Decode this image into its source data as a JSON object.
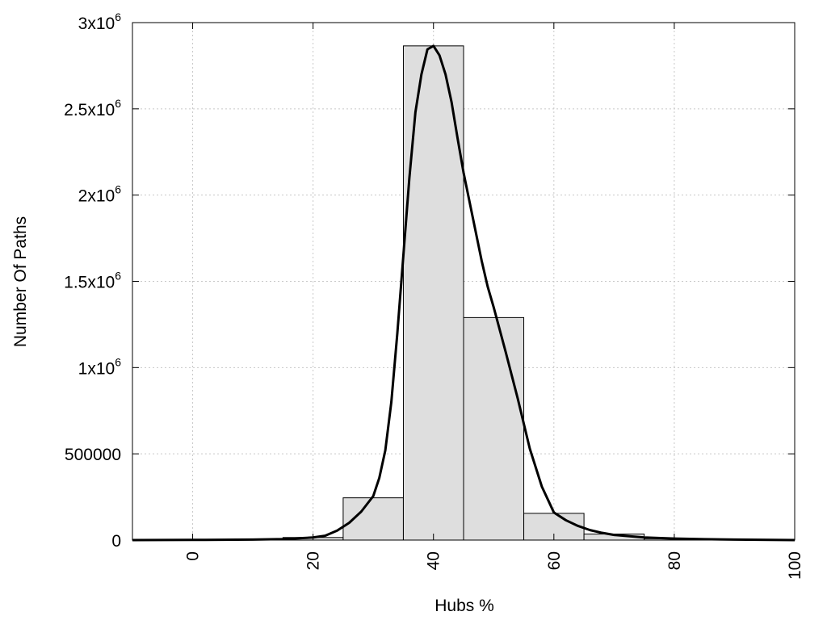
{
  "chart_data": {
    "type": "bar",
    "xlabel": "Hubs %",
    "ylabel": "Number Of Paths",
    "xlim": [
      -10,
      100
    ],
    "ylim": [
      0,
      3000000
    ],
    "grid": true,
    "x_ticks": [
      {
        "value": 0,
        "label": "0"
      },
      {
        "value": 20,
        "label": "20"
      },
      {
        "value": 40,
        "label": "40"
      },
      {
        "value": 60,
        "label": "60"
      },
      {
        "value": 80,
        "label": "80"
      },
      {
        "value": 100,
        "label": "100"
      }
    ],
    "y_ticks": [
      {
        "value": 0,
        "label": "0"
      },
      {
        "value": 500000,
        "label": "500000"
      },
      {
        "value": 1000000,
        "label": "1x10",
        "sup": "6"
      },
      {
        "value": 1500000,
        "label": "1.5x10",
        "sup": "6"
      },
      {
        "value": 2000000,
        "label": "2x10",
        "sup": "6"
      },
      {
        "value": 2500000,
        "label": "2.5x10",
        "sup": "6"
      },
      {
        "value": 3000000,
        "label": "3x10",
        "sup": "6"
      }
    ],
    "bars": [
      {
        "x": 0,
        "value": 0
      },
      {
        "x": 10,
        "value": 2000
      },
      {
        "x": 20,
        "value": 15000
      },
      {
        "x": 30,
        "value": 245000
      },
      {
        "x": 40,
        "value": 2865000
      },
      {
        "x": 50,
        "value": 1290000
      },
      {
        "x": 60,
        "value": 155000
      },
      {
        "x": 70,
        "value": 35000
      },
      {
        "x": 80,
        "value": 8000
      },
      {
        "x": 90,
        "value": 2000
      }
    ],
    "bin_width": 10,
    "fit_curve": [
      [
        -10,
        0
      ],
      [
        0,
        1000
      ],
      [
        10,
        3000
      ],
      [
        15,
        6000
      ],
      [
        20,
        15000
      ],
      [
        22,
        25000
      ],
      [
        24,
        55000
      ],
      [
        26,
        100000
      ],
      [
        28,
        165000
      ],
      [
        30,
        255000
      ],
      [
        31,
        360000
      ],
      [
        32,
        520000
      ],
      [
        33,
        800000
      ],
      [
        34,
        1200000
      ],
      [
        35,
        1650000
      ],
      [
        36,
        2100000
      ],
      [
        37,
        2480000
      ],
      [
        38,
        2700000
      ],
      [
        39,
        2845000
      ],
      [
        40,
        2865000
      ],
      [
        41,
        2810000
      ],
      [
        42,
        2700000
      ],
      [
        43,
        2540000
      ],
      [
        44,
        2330000
      ],
      [
        45,
        2130000
      ],
      [
        46,
        1960000
      ],
      [
        47,
        1790000
      ],
      [
        48,
        1620000
      ],
      [
        49,
        1470000
      ],
      [
        50,
        1350000
      ],
      [
        52,
        1090000
      ],
      [
        54,
        820000
      ],
      [
        56,
        530000
      ],
      [
        58,
        310000
      ],
      [
        60,
        160000
      ],
      [
        62,
        115000
      ],
      [
        64,
        82000
      ],
      [
        66,
        58000
      ],
      [
        68,
        42000
      ],
      [
        70,
        30000
      ],
      [
        75,
        15000
      ],
      [
        80,
        9000
      ],
      [
        85,
        5000
      ],
      [
        90,
        3000
      ],
      [
        100,
        0
      ]
    ]
  }
}
